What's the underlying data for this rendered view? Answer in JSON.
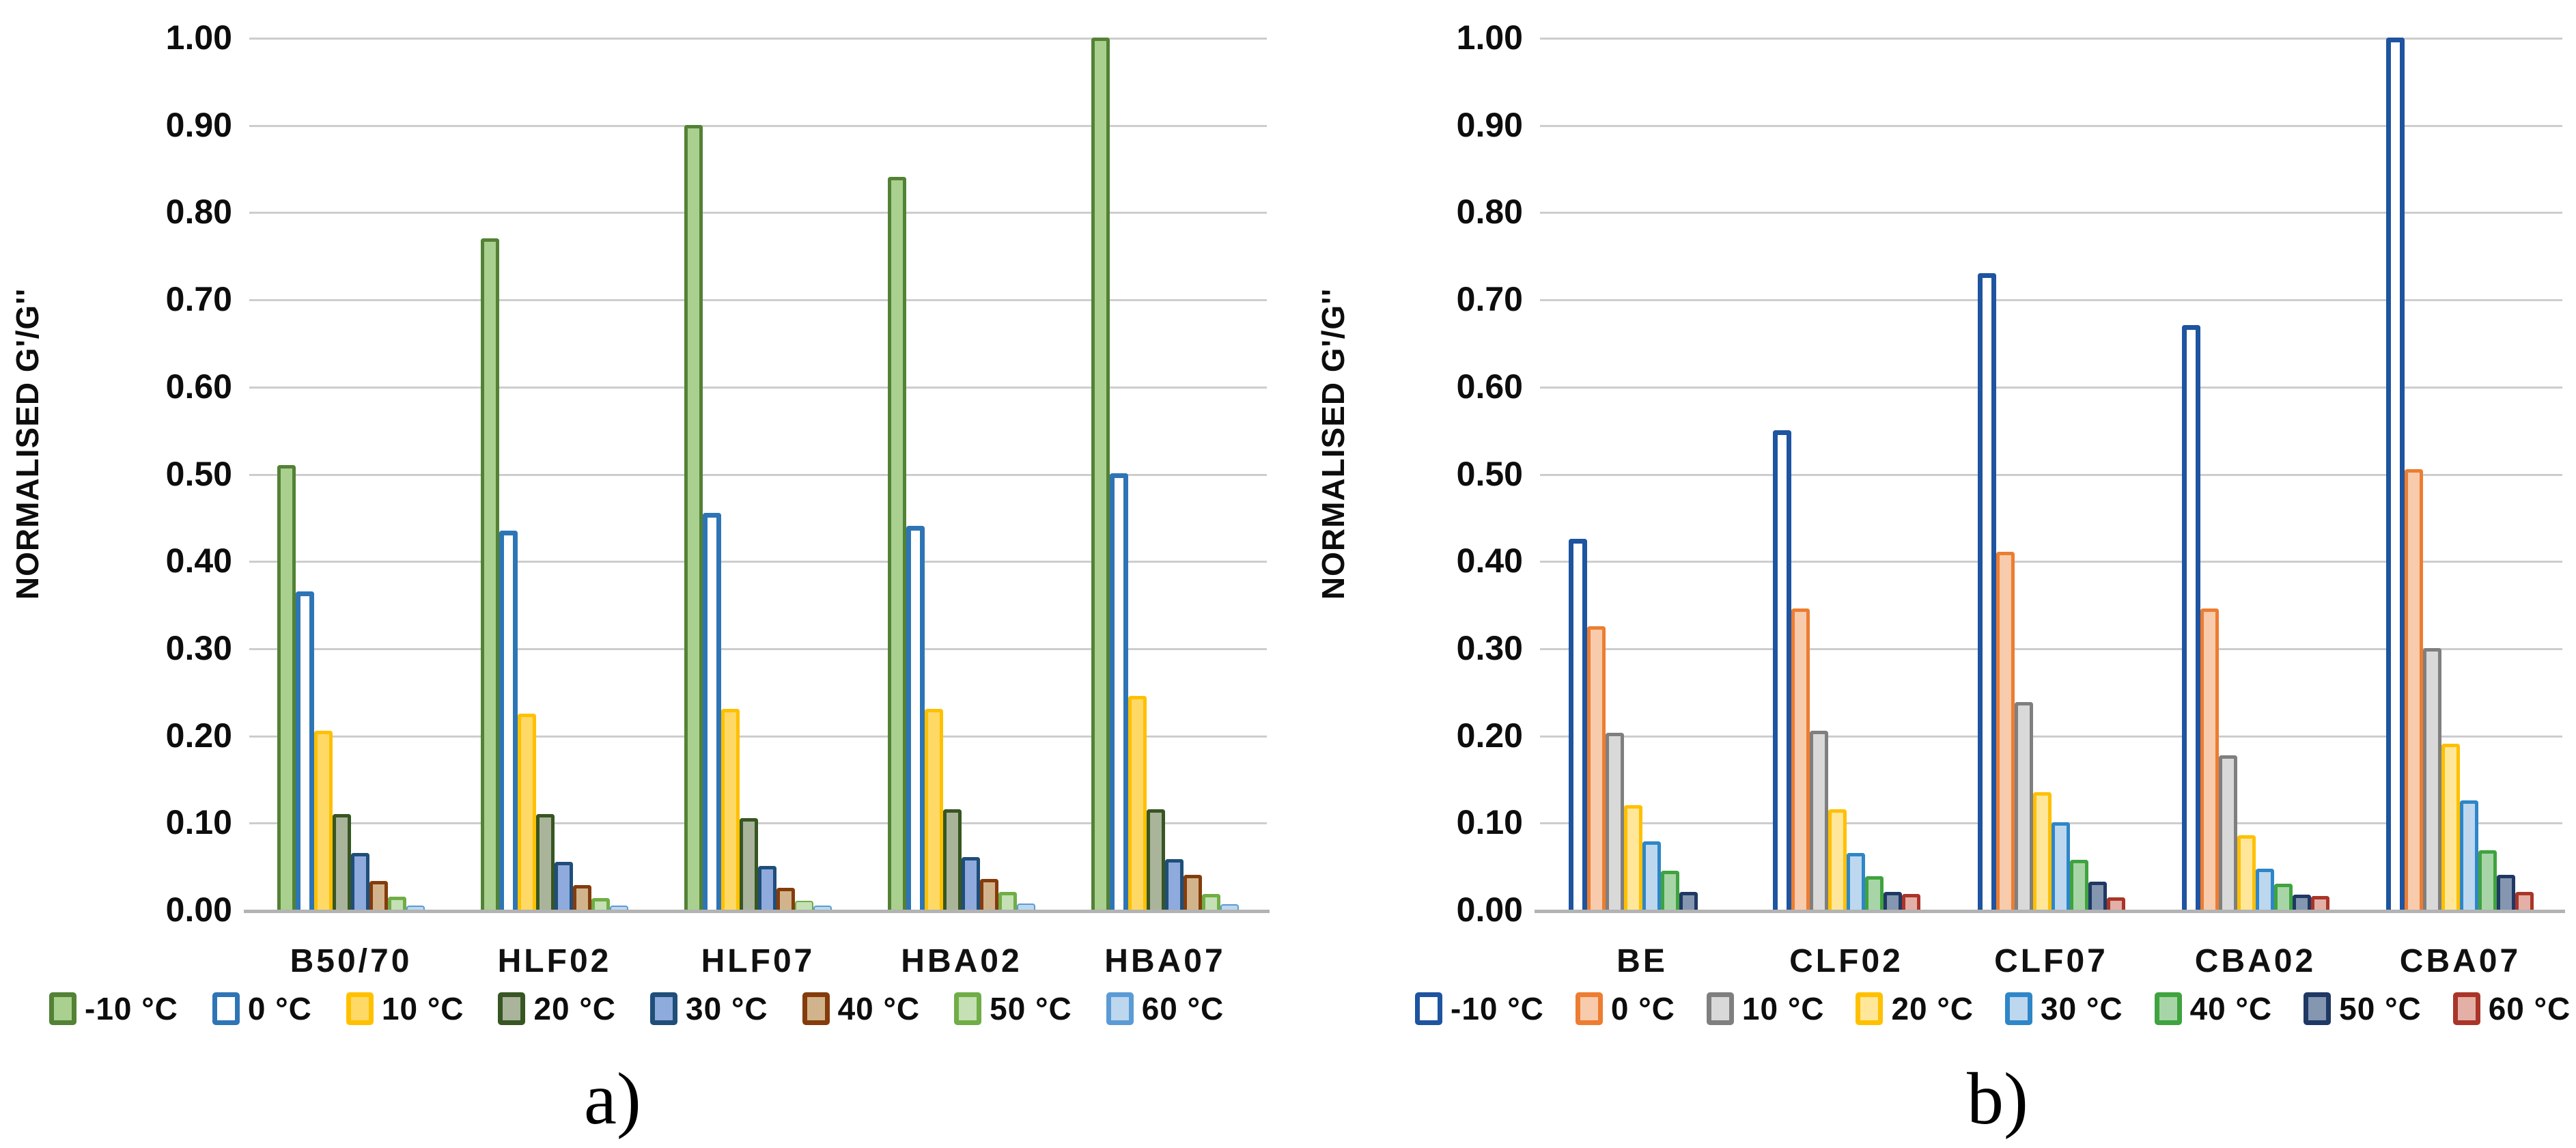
{
  "figure": {
    "captions": {
      "a": "a)",
      "b": "b)"
    }
  },
  "chart_data": [
    {
      "id": "a",
      "type": "bar",
      "title": "",
      "xlabel": "",
      "ylabel": "NORMALISED G'/G''",
      "ylim": [
        0,
        1.0
      ],
      "ytick_step": 0.1,
      "ytick_labels": [
        "0.00",
        "0.10",
        "0.20",
        "0.30",
        "0.40",
        "0.50",
        "0.60",
        "0.70",
        "0.80",
        "0.90",
        "1.00"
      ],
      "grid": true,
      "legend_position": "bottom",
      "categories": [
        "B50/70",
        "HLF02",
        "HLF07",
        "HBA02",
        "HBA07"
      ],
      "series": [
        {
          "name": "-10 °C",
          "fill": "#A9D08E",
          "border": "#538135",
          "values": [
            0.51,
            0.77,
            0.9,
            0.84,
            1.0
          ]
        },
        {
          "name": "0 °C",
          "fill": "#FFFFFF",
          "border": "#2E75B6",
          "values": [
            0.365,
            0.435,
            0.455,
            0.44,
            0.5
          ]
        },
        {
          "name": "10 °C",
          "fill": "#FFD966",
          "border": "#FFC000",
          "values": [
            0.205,
            0.225,
            0.23,
            0.23,
            0.245
          ]
        },
        {
          "name": "20 °C",
          "fill": "#A9B49B",
          "border": "#375623",
          "values": [
            0.11,
            0.11,
            0.105,
            0.115,
            0.115
          ]
        },
        {
          "name": "30 °C",
          "fill": "#8FAADC",
          "border": "#1F4E79",
          "values": [
            0.065,
            0.055,
            0.05,
            0.06,
            0.058
          ]
        },
        {
          "name": "40 °C",
          "fill": "#D2B48C",
          "border": "#843C0C",
          "values": [
            0.033,
            0.028,
            0.025,
            0.035,
            0.04
          ]
        },
        {
          "name": "50 °C",
          "fill": "#C5E0B4",
          "border": "#70AD47",
          "values": [
            0.015,
            0.013,
            0.01,
            0.02,
            0.018
          ]
        },
        {
          "name": "60 °C",
          "fill": "#BDD7EE",
          "border": "#5B9BD5",
          "values": [
            0.005,
            0.005,
            0.004,
            0.007,
            0.006
          ]
        }
      ]
    },
    {
      "id": "b",
      "type": "bar",
      "title": "",
      "xlabel": "",
      "ylabel": "NORMALISED G'/G''",
      "ylim": [
        0,
        1.0
      ],
      "ytick_step": 0.1,
      "ytick_labels": [
        "0.00",
        "0.10",
        "0.20",
        "0.30",
        "0.40",
        "0.50",
        "0.60",
        "0.70",
        "0.80",
        "0.90",
        "1.00"
      ],
      "grid": true,
      "legend_position": "bottom",
      "categories": [
        "BE",
        "CLF02",
        "CLF07",
        "CBA02",
        "CBA07"
      ],
      "series": [
        {
          "name": "-10 °C",
          "fill": "#FFFFFF",
          "border": "#1E54A0",
          "values": [
            0.425,
            0.55,
            0.73,
            0.67,
            1.0
          ]
        },
        {
          "name": "0 °C",
          "fill": "#F8CBAD",
          "border": "#ED7D31",
          "values": [
            0.325,
            0.345,
            0.41,
            0.345,
            0.505
          ]
        },
        {
          "name": "10 °C",
          "fill": "#D9D9D9",
          "border": "#7F7F7F",
          "values": [
            0.203,
            0.205,
            0.238,
            0.177,
            0.3
          ]
        },
        {
          "name": "20 °C",
          "fill": "#FFE699",
          "border": "#FFC000",
          "values": [
            0.12,
            0.115,
            0.135,
            0.085,
            0.19
          ]
        },
        {
          "name": "30 °C",
          "fill": "#BDD7EE",
          "border": "#2E86C8",
          "values": [
            0.078,
            0.065,
            0.1,
            0.047,
            0.125
          ]
        },
        {
          "name": "40 °C",
          "fill": "#A8D5A8",
          "border": "#3FA33F",
          "values": [
            0.045,
            0.038,
            0.057,
            0.03,
            0.068
          ]
        },
        {
          "name": "50 °C",
          "fill": "#8496B0",
          "border": "#1F3864",
          "values": [
            0.02,
            0.02,
            0.032,
            0.017,
            0.04
          ]
        },
        {
          "name": "60 °C",
          "fill": "#E3AFA7",
          "border": "#A93528",
          "values": [
            0,
            0.018,
            0.014,
            0.016,
            0.02
          ]
        }
      ]
    }
  ]
}
